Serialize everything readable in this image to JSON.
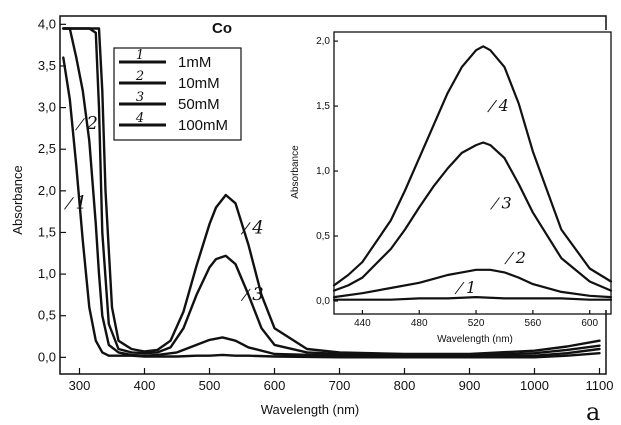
{
  "chart_data": [
    {
      "type": "line",
      "title": "Co",
      "xlabel": "Wavelength (nm)",
      "ylabel": "Absorbance",
      "xlim": [
        270,
        1110
      ],
      "ylim": [
        -0.2,
        4.1
      ],
      "x_ticks": [
        "300",
        "400",
        "500",
        "600",
        "700",
        "800",
        "900",
        "1000",
        "1100"
      ],
      "y_ticks": [
        "0,0",
        "0,5",
        "1,0",
        "1,5",
        "2,0",
        "2,5",
        "3,0",
        "3,5",
        "4,0"
      ],
      "legend": {
        "position": "top-left",
        "entries": [
          {
            "marker": "1",
            "label": "1mM"
          },
          {
            "marker": "2",
            "label": "10mM"
          },
          {
            "marker": "3",
            "label": "50mM"
          },
          {
            "marker": "4",
            "label": "100mM"
          }
        ]
      },
      "series": [
        {
          "name": "1mM",
          "x": [
            275,
            285,
            295,
            305,
            315,
            325,
            335,
            345,
            360,
            380,
            400,
            420,
            450,
            480,
            500,
            520,
            540,
            560,
            600,
            700,
            800,
            900,
            1000,
            1050,
            1100
          ],
          "y": [
            3.6,
            3.1,
            2.3,
            1.4,
            0.6,
            0.2,
            0.06,
            0.02,
            0.02,
            0.02,
            0.01,
            0.01,
            0.01,
            0.02,
            0.02,
            0.03,
            0.02,
            0.02,
            0.01,
            0.0,
            0.0,
            0.0,
            0.0,
            0.02,
            0.05
          ]
        },
        {
          "name": "10mM",
          "x": [
            275,
            285,
            295,
            305,
            315,
            325,
            330,
            335,
            345,
            360,
            380,
            400,
            420,
            450,
            480,
            500,
            520,
            540,
            560,
            600,
            700,
            800,
            900,
            1000,
            1050,
            1100
          ],
          "y": [
            3.95,
            3.95,
            3.6,
            3.2,
            2.6,
            1.6,
            1.0,
            0.5,
            0.15,
            0.06,
            0.03,
            0.02,
            0.03,
            0.06,
            0.15,
            0.21,
            0.24,
            0.2,
            0.12,
            0.04,
            0.02,
            0.01,
            0.01,
            0.02,
            0.05,
            0.1
          ]
        },
        {
          "name": "50mM",
          "x": [
            275,
            290,
            300,
            315,
            325,
            330,
            335,
            345,
            360,
            380,
            400,
            420,
            440,
            460,
            480,
            500,
            510,
            525,
            540,
            560,
            580,
            600,
            650,
            700,
            800,
            900,
            1000,
            1050,
            1100
          ],
          "y": [
            3.95,
            3.95,
            3.95,
            3.95,
            3.9,
            3.0,
            1.5,
            0.4,
            0.1,
            0.06,
            0.05,
            0.06,
            0.12,
            0.35,
            0.75,
            1.08,
            1.18,
            1.22,
            1.12,
            0.75,
            0.35,
            0.15,
            0.06,
            0.04,
            0.02,
            0.02,
            0.05,
            0.09,
            0.14
          ]
        },
        {
          "name": "100mM",
          "x": [
            275,
            290,
            300,
            315,
            330,
            335,
            340,
            350,
            360,
            380,
            400,
            420,
            440,
            460,
            480,
            500,
            510,
            525,
            540,
            560,
            580,
            600,
            650,
            700,
            800,
            900,
            1000,
            1050,
            1100
          ],
          "y": [
            3.95,
            3.95,
            3.95,
            3.95,
            3.95,
            3.2,
            2.0,
            0.6,
            0.2,
            0.1,
            0.07,
            0.09,
            0.2,
            0.55,
            1.1,
            1.6,
            1.8,
            1.95,
            1.85,
            1.35,
            0.75,
            0.35,
            0.1,
            0.06,
            0.04,
            0.04,
            0.08,
            0.13,
            0.2
          ]
        }
      ],
      "annotations": [
        {
          "text": "1",
          "x": 283,
          "y": 1.85
        },
        {
          "text": "2",
          "x": 300,
          "y": 2.8
        },
        {
          "text": "3",
          "x": 555,
          "y": 0.75
        },
        {
          "text": "4",
          "x": 555,
          "y": 1.55
        }
      ],
      "panel_label": "a"
    },
    {
      "type": "line",
      "inset": true,
      "title": "",
      "xlabel": "Wavelength (nm)",
      "ylabel": "Absorbance",
      "xlim": [
        420,
        615
      ],
      "ylim": [
        -0.1,
        2.07
      ],
      "x_ticks": [
        "440",
        "480",
        "520",
        "560",
        "600"
      ],
      "y_ticks": [
        "0,0",
        "0,5",
        "1,0",
        "1,5",
        "2,0"
      ],
      "series": [
        {
          "name": "1mM",
          "x": [
            420,
            440,
            460,
            480,
            500,
            520,
            540,
            560,
            580,
            600,
            615
          ],
          "y": [
            0.01,
            0.01,
            0.01,
            0.02,
            0.02,
            0.03,
            0.02,
            0.02,
            0.02,
            0.01,
            0.01
          ]
        },
        {
          "name": "10mM",
          "x": [
            420,
            440,
            460,
            480,
            490,
            500,
            510,
            520,
            530,
            540,
            550,
            560,
            580,
            600,
            615
          ],
          "y": [
            0.03,
            0.06,
            0.1,
            0.14,
            0.17,
            0.2,
            0.22,
            0.24,
            0.24,
            0.22,
            0.18,
            0.13,
            0.07,
            0.04,
            0.03
          ]
        },
        {
          "name": "50mM",
          "x": [
            420,
            430,
            440,
            460,
            470,
            480,
            490,
            500,
            510,
            520,
            525,
            530,
            540,
            550,
            560,
            580,
            600,
            615
          ],
          "y": [
            0.08,
            0.12,
            0.18,
            0.4,
            0.55,
            0.72,
            0.88,
            1.02,
            1.14,
            1.2,
            1.22,
            1.2,
            1.1,
            0.9,
            0.68,
            0.33,
            0.15,
            0.08
          ]
        },
        {
          "name": "100mM",
          "x": [
            420,
            430,
            440,
            460,
            470,
            480,
            490,
            500,
            510,
            520,
            525,
            530,
            540,
            550,
            560,
            580,
            600,
            615
          ],
          "y": [
            0.12,
            0.2,
            0.3,
            0.62,
            0.85,
            1.1,
            1.35,
            1.6,
            1.8,
            1.93,
            1.96,
            1.93,
            1.8,
            1.52,
            1.15,
            0.55,
            0.25,
            0.15
          ]
        }
      ],
      "annotations": [
        {
          "text": "1",
          "x": 508,
          "y": 0.1
        },
        {
          "text": "2",
          "x": 543,
          "y": 0.33
        },
        {
          "text": "3",
          "x": 533,
          "y": 0.75
        },
        {
          "text": "4",
          "x": 531,
          "y": 1.5
        }
      ]
    }
  ]
}
